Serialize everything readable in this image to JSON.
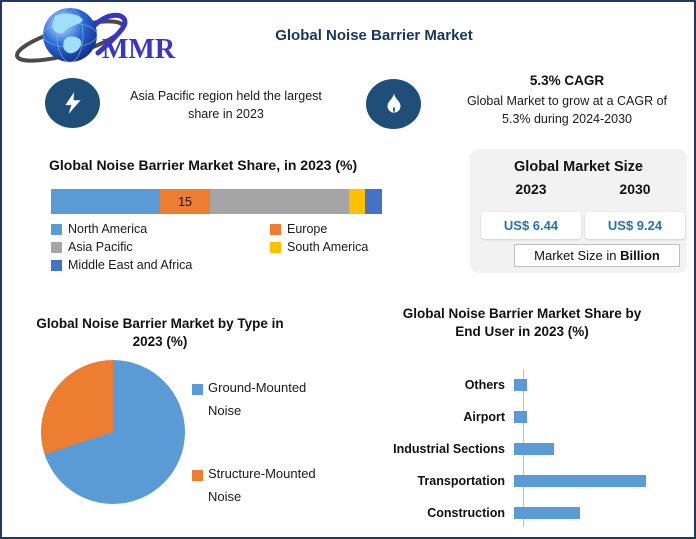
{
  "page": {
    "title": "Global Noise Barrier Market",
    "logo_text": "MMR",
    "border_color": "#1F3864",
    "accent_navy": "#17375E",
    "icon_circle_color": "#1F4E79"
  },
  "highlights": {
    "asia_pacific": {
      "icon": "lightning-icon",
      "text": "Asia Pacific region held the largest share in 2023"
    },
    "cagr": {
      "icon": "flame-icon",
      "headline": "5.3% CAGR",
      "text": "Global Market to grow at a CAGR of 5.3% during 2024-2030"
    }
  },
  "market_size_panel": {
    "title": "Global Market Size",
    "year_left": "2023",
    "year_right": "2030",
    "value_left": "US$ 6.44",
    "value_right": "US$ 9.24",
    "note_regular": "Market Size in ",
    "note_bold": "Billion",
    "value_color": "#2373B5",
    "panel_bg": "#F2F2F2"
  },
  "chart_data": [
    {
      "type": "bar",
      "subtype": "stacked-horizontal",
      "title": "Global Noise Barrier Market Share, in 2023 (%)",
      "categories": [
        "North America",
        "Europe",
        "Asia Pacific",
        "South America",
        "Middle East and Africa"
      ],
      "values": [
        33,
        15,
        42,
        5,
        5
      ],
      "data_labels": [
        "",
        "15",
        "",
        "",
        ""
      ],
      "colors": [
        "#5B9BD5",
        "#ED7D31",
        "#A5A5A5",
        "#FFC000",
        "#4472C4"
      ],
      "legend_position": "bottom",
      "xlim": [
        0,
        100
      ],
      "grid": false
    },
    {
      "type": "pie",
      "title": "Global Noise Barrier Market by Type in 2023 (%)",
      "labels": [
        "Ground-Mounted Noise",
        "Structure-Mounted Noise"
      ],
      "values": [
        70,
        30
      ],
      "colors": [
        "#5B9BD5",
        "#ED7D31"
      ],
      "legend_position": "right"
    },
    {
      "type": "bar",
      "subtype": "horizontal",
      "title": "Global Noise Barrier Market Share by End User in 2023 (%)",
      "categories": [
        "Others",
        "Airport",
        "Industrial Sections",
        "Transportation",
        "Construction"
      ],
      "values": [
        5,
        5,
        15,
        50,
        25
      ],
      "color": "#5B9BD5",
      "axis_color": "#BFBFBF",
      "grid": false,
      "xlim": [
        0,
        55
      ]
    }
  ]
}
